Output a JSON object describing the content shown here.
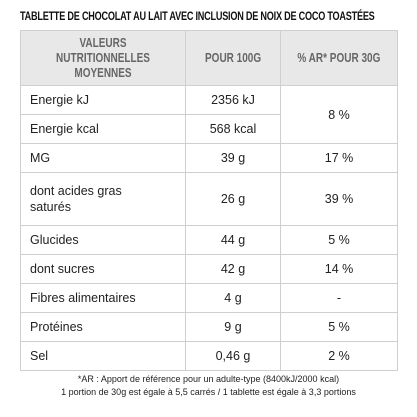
{
  "header": {
    "title": "TABLETTE DE CHOCOLAT AU LAIT AVEC INCLUSION DE NOIX DE COCO TOASTÉES"
  },
  "table": {
    "columns": [
      "VALEURS NUTRITIONNELLES MOYENNES",
      "POUR 100G",
      "% AR* POUR 30G"
    ],
    "rows": [
      [
        "Energie kJ",
        "2356 kJ",
        "8 %"
      ],
      [
        "Energie kcal",
        "568 kcal"
      ],
      [
        "MG",
        "39 g",
        "17 %"
      ],
      [
        "dont acides gras saturés",
        "26 g",
        "39 %"
      ],
      [
        "Glucides",
        "44 g",
        "5 %"
      ],
      [
        "dont sucres",
        "42 g",
        "14 %"
      ],
      [
        "Fibres alimentaires",
        "4 g",
        "-"
      ],
      [
        "Protéines",
        "9 g",
        "5 %"
      ],
      [
        "Sel",
        "0,46 g",
        "2 %"
      ]
    ]
  },
  "footnotes": [
    "*AR : Apport de référence pour un adulte-type (8400kJ/2000 kcal)",
    "1 portion de 30g est égale à 5,5 carrés / 1 tablette est égale à 3,3 portions"
  ]
}
